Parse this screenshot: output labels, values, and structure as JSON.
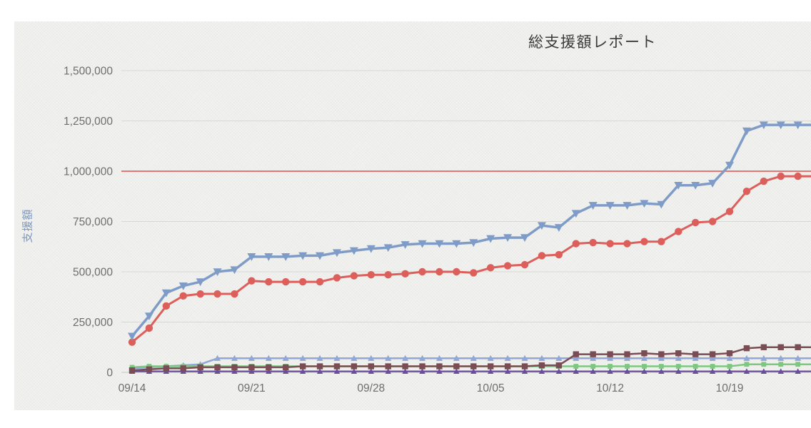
{
  "page": {
    "title": "総支援額レポート"
  },
  "chart_data": {
    "type": "line",
    "title": "総支援額レポート",
    "xlabel": "",
    "ylabel": "支援額",
    "ylim": [
      0,
      1500000
    ],
    "yticks": [
      0,
      250000,
      500000,
      750000,
      1000000,
      1250000,
      1500000
    ],
    "ytick_labels": [
      "0",
      "250,000",
      "500,000",
      "750,000",
      "1,000,000",
      "1,250,000",
      "1,500,000"
    ],
    "x": [
      0,
      1,
      2,
      3,
      4,
      5,
      6,
      7,
      8,
      9,
      10,
      11,
      12,
      13,
      14,
      15,
      16,
      17,
      18,
      19,
      20,
      21,
      22,
      23,
      24,
      25,
      26,
      27,
      28,
      29,
      30,
      31,
      32,
      33,
      34,
      35,
      36,
      37,
      38,
      39,
      40
    ],
    "xticks": [
      0,
      7,
      14,
      21,
      28,
      35
    ],
    "xtick_labels": [
      "09/14",
      "09/21",
      "09/28",
      "10/05",
      "10/12",
      "10/19"
    ],
    "grid": true,
    "legend": "none",
    "goal_line": 1000000,
    "goal_color": "#e04f4b",
    "series": [
      {
        "marker": "triangle-up",
        "color": "#90a7d8",
        "width": 2.5,
        "size": 4.5,
        "values": [
          20000,
          25000,
          30000,
          35000,
          40000,
          70000,
          70000,
          70000,
          70000,
          70000,
          70000,
          70000,
          70000,
          70000,
          70000,
          70000,
          70000,
          70000,
          70000,
          70000,
          70000,
          70000,
          70000,
          70000,
          70000,
          70000,
          70000,
          70000,
          70000,
          70000,
          70000,
          70000,
          70000,
          70000,
          70000,
          70000,
          70000,
          70000,
          70000,
          70000,
          70000
        ]
      },
      {
        "marker": "square",
        "color": "#7cc87f",
        "width": 2.5,
        "size": 3.4,
        "values": [
          25000,
          30000,
          30000,
          30000,
          30000,
          30000,
          30000,
          30000,
          30000,
          30000,
          30000,
          30000,
          30000,
          30000,
          30000,
          30000,
          30000,
          30000,
          30000,
          30000,
          30000,
          30000,
          30000,
          30000,
          30000,
          30000,
          30000,
          30000,
          30000,
          30000,
          30000,
          30000,
          30000,
          30000,
          30000,
          30000,
          40000,
          40000,
          40000,
          40000,
          40000
        ]
      },
      {
        "marker": "triangle-up",
        "color": "#6a4e9d",
        "width": 2.2,
        "size": 4.2,
        "values": [
          5000,
          5000,
          5000,
          5000,
          5000,
          5000,
          5000,
          5000,
          5000,
          5000,
          5000,
          5000,
          5000,
          5000,
          5000,
          5000,
          5000,
          5000,
          5000,
          5000,
          5000,
          5000,
          5000,
          5000,
          5000,
          5000,
          5000,
          5000,
          5000,
          5000,
          5000,
          5000,
          5000,
          5000,
          5000,
          5000,
          5000,
          5000,
          5000,
          5000,
          5000
        ]
      },
      {
        "marker": "square",
        "color": "#7a4d55",
        "width": 2.5,
        "size": 4.2,
        "values": [
          10000,
          15000,
          20000,
          20000,
          25000,
          25000,
          25000,
          25000,
          25000,
          25000,
          30000,
          30000,
          30000,
          30000,
          30000,
          30000,
          30000,
          30000,
          30000,
          30000,
          30000,
          30000,
          30000,
          30000,
          35000,
          35000,
          90000,
          90000,
          90000,
          90000,
          95000,
          90000,
          95000,
          90000,
          90000,
          95000,
          120000,
          125000,
          125000,
          125000,
          125000
        ]
      },
      {
        "marker": "circle",
        "color": "#dd5f5b",
        "width": 3,
        "size": 5.2,
        "values": [
          150000,
          220000,
          330000,
          380000,
          390000,
          390000,
          390000,
          455000,
          450000,
          450000,
          450000,
          450000,
          470000,
          480000,
          485000,
          485000,
          490000,
          500000,
          500000,
          500000,
          495000,
          520000,
          530000,
          535000,
          580000,
          585000,
          640000,
          645000,
          640000,
          640000,
          650000,
          650000,
          700000,
          745000,
          750000,
          800000,
          900000,
          950000,
          975000,
          975000,
          975000
        ]
      },
      {
        "marker": "triangle-down",
        "color": "#7e9cc7",
        "width": 3.5,
        "size": 6,
        "values": [
          180000,
          280000,
          395000,
          430000,
          450000,
          500000,
          510000,
          575000,
          575000,
          575000,
          580000,
          580000,
          595000,
          605000,
          615000,
          620000,
          635000,
          640000,
          640000,
          640000,
          645000,
          665000,
          670000,
          670000,
          730000,
          720000,
          790000,
          830000,
          830000,
          830000,
          840000,
          835000,
          930000,
          930000,
          940000,
          1030000,
          1200000,
          1230000,
          1230000,
          1230000,
          1230000
        ]
      }
    ]
  }
}
